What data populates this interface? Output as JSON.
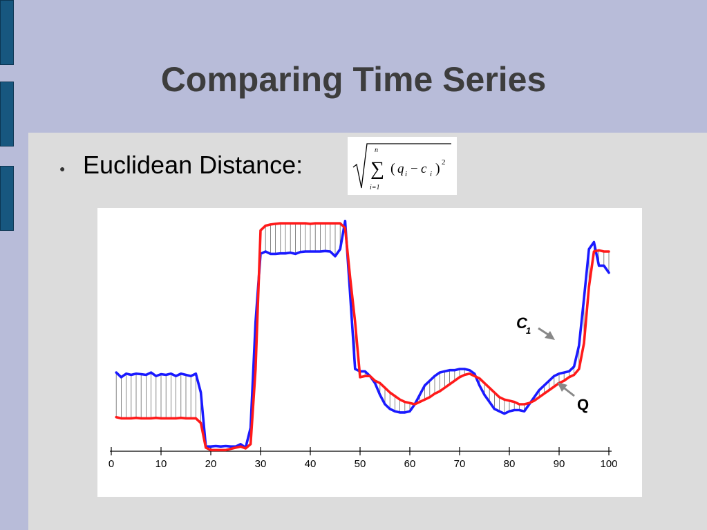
{
  "slide": {
    "title": "Comparing Time Series",
    "bullet": "Euclidean Distance:",
    "formula": {
      "sum_upper": "n",
      "sum_lower": "i=1",
      "expression": "(q_i − c_i)^2",
      "var_q": "q",
      "var_c": "c",
      "sub": "i",
      "exp": "2"
    }
  },
  "chart_data": {
    "type": "line",
    "title": "",
    "xlabel": "",
    "ylabel": "",
    "xlim": [
      0,
      100
    ],
    "xticks": [
      0,
      10,
      20,
      30,
      40,
      50,
      60,
      70,
      80,
      90,
      100
    ],
    "ylim": [
      0,
      1
    ],
    "y_axis_visible": false,
    "connector_lines": true,
    "connector_color": "#666666",
    "series": [
      {
        "name": "C",
        "label_subscript": "1",
        "color": "#ff1a1a",
        "x": [
          1,
          2,
          3,
          4,
          5,
          6,
          7,
          8,
          9,
          10,
          11,
          12,
          13,
          14,
          15,
          16,
          17,
          18,
          19,
          20,
          21,
          22,
          23,
          24,
          25,
          26,
          27,
          28,
          29,
          30,
          31,
          32,
          33,
          34,
          35,
          36,
          37,
          38,
          39,
          40,
          41,
          42,
          43,
          44,
          45,
          46,
          47,
          48,
          49,
          50,
          51,
          52,
          53,
          54,
          55,
          56,
          57,
          58,
          59,
          60,
          61,
          62,
          63,
          64,
          65,
          66,
          67,
          68,
          69,
          70,
          71,
          72,
          73,
          74,
          75,
          76,
          77,
          78,
          79,
          80,
          81,
          82,
          83,
          84,
          85,
          86,
          87,
          88,
          89,
          90,
          91,
          92,
          93,
          94,
          95,
          96,
          97,
          98,
          99,
          100
        ],
        "y": [
          0.145,
          0.14,
          0.14,
          0.14,
          0.142,
          0.14,
          0.14,
          0.14,
          0.142,
          0.14,
          0.14,
          0.14,
          0.14,
          0.142,
          0.14,
          0.14,
          0.14,
          0.12,
          0.015,
          0.005,
          0.005,
          0.005,
          0.005,
          0.01,
          0.015,
          0.02,
          0.012,
          0.03,
          0.35,
          0.94,
          0.96,
          0.965,
          0.968,
          0.97,
          0.97,
          0.97,
          0.97,
          0.97,
          0.97,
          0.968,
          0.97,
          0.97,
          0.97,
          0.97,
          0.97,
          0.97,
          0.95,
          0.74,
          0.55,
          0.315,
          0.32,
          0.32,
          0.3,
          0.29,
          0.27,
          0.25,
          0.235,
          0.22,
          0.21,
          0.205,
          0.2,
          0.21,
          0.22,
          0.23,
          0.245,
          0.255,
          0.27,
          0.285,
          0.3,
          0.315,
          0.325,
          0.33,
          0.32,
          0.31,
          0.29,
          0.27,
          0.25,
          0.23,
          0.22,
          0.215,
          0.21,
          0.2,
          0.2,
          0.205,
          0.215,
          0.23,
          0.245,
          0.26,
          0.275,
          0.29,
          0.3,
          0.315,
          0.325,
          0.35,
          0.46,
          0.7,
          0.85,
          0.855,
          0.85,
          0.85
        ]
      },
      {
        "name": "Q",
        "color": "#1a1aff",
        "x": [
          1,
          2,
          3,
          4,
          5,
          6,
          7,
          8,
          9,
          10,
          11,
          12,
          13,
          14,
          15,
          16,
          17,
          18,
          19,
          20,
          21,
          22,
          23,
          24,
          25,
          26,
          27,
          28,
          29,
          30,
          31,
          32,
          33,
          34,
          35,
          36,
          37,
          38,
          39,
          40,
          41,
          42,
          43,
          44,
          45,
          46,
          47,
          48,
          49,
          50,
          51,
          52,
          53,
          54,
          55,
          56,
          57,
          58,
          59,
          60,
          61,
          62,
          63,
          64,
          65,
          66,
          67,
          68,
          69,
          70,
          71,
          72,
          73,
          74,
          75,
          76,
          77,
          78,
          79,
          80,
          81,
          82,
          83,
          84,
          85,
          86,
          87,
          88,
          89,
          90,
          91,
          92,
          93,
          94,
          95,
          96,
          97,
          98,
          99,
          100
        ],
        "y": [
          0.335,
          0.315,
          0.33,
          0.325,
          0.33,
          0.328,
          0.325,
          0.335,
          0.32,
          0.328,
          0.325,
          0.33,
          0.32,
          0.33,
          0.325,
          0.32,
          0.33,
          0.25,
          0.02,
          0.02,
          0.022,
          0.02,
          0.022,
          0.02,
          0.02,
          0.03,
          0.015,
          0.1,
          0.55,
          0.84,
          0.85,
          0.84,
          0.84,
          0.842,
          0.842,
          0.845,
          0.84,
          0.848,
          0.85,
          0.85,
          0.85,
          0.85,
          0.852,
          0.85,
          0.83,
          0.86,
          0.98,
          0.67,
          0.35,
          0.34,
          0.34,
          0.32,
          0.29,
          0.24,
          0.2,
          0.18,
          0.17,
          0.165,
          0.165,
          0.17,
          0.2,
          0.24,
          0.28,
          0.3,
          0.32,
          0.335,
          0.34,
          0.345,
          0.345,
          0.35,
          0.35,
          0.345,
          0.33,
          0.28,
          0.24,
          0.21,
          0.18,
          0.17,
          0.16,
          0.17,
          0.175,
          0.175,
          0.17,
          0.2,
          0.23,
          0.26,
          0.28,
          0.3,
          0.32,
          0.33,
          0.335,
          0.34,
          0.36,
          0.45,
          0.65,
          0.86,
          0.89,
          0.79,
          0.79,
          0.76
        ]
      }
    ],
    "annotations": [
      {
        "text": "C",
        "subscript": "1",
        "points_to": "C"
      },
      {
        "text": "Q",
        "points_to": "Q"
      }
    ]
  },
  "decor": {
    "tab_color": "#17577f",
    "background": "#b8bcd9",
    "content_bg": "#dcdcdc",
    "arrow_color": "#888888"
  }
}
